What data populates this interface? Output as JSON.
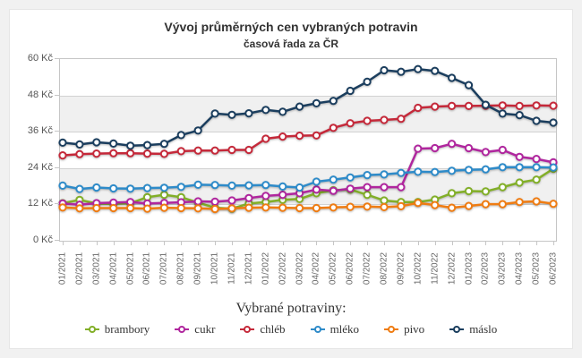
{
  "card": {
    "title": "Vývoj průměrných cen vybraných potravin",
    "subtitle": "časová řada za ČR"
  },
  "chart_data": {
    "type": "line",
    "title": "Vývoj průměrných cen vybraných potravin",
    "subtitle": "časová řada za ČR",
    "legend_title": "Vybrané potraviny:",
    "legend_position": "bottom",
    "grid": true,
    "ylim": [
      0,
      60
    ],
    "y_ticks": [
      0,
      12,
      24,
      36,
      48,
      60
    ],
    "y_tick_suffix": " Kč",
    "shaded_bands": [
      [
        12,
        24
      ],
      [
        36,
        48
      ]
    ],
    "band_color": "#f0f0f0",
    "x_labels": [
      "01/2021",
      "02/2021",
      "03/2021",
      "04/2021",
      "05/2021",
      "06/2021",
      "07/2021",
      "08/2021",
      "09/2021",
      "10/2021",
      "11/2021",
      "12/2021",
      "01/2022",
      "02/2022",
      "03/2022",
      "04/2022",
      "05/2022",
      "06/2022",
      "07/2022",
      "08/2022",
      "09/2022",
      "10/2022",
      "11/2022",
      "12/2022",
      "01/2023",
      "02/2023",
      "03/2023",
      "04/2023",
      "05/2023",
      "06/2023"
    ],
    "series": [
      {
        "name": "brambory",
        "color": "#82af28",
        "values": [
          12.4,
          13.5,
          12.3,
          12.2,
          12.4,
          14.4,
          15.2,
          14.4,
          12.6,
          10.9,
          10.6,
          12.3,
          12.8,
          13.5,
          13.8,
          15.7,
          16.7,
          16.9,
          15.2,
          13.3,
          12.8,
          12.8,
          13.6,
          15.7,
          16.4,
          16.3,
          17.7,
          19.2,
          20.2,
          23.8
        ]
      },
      {
        "name": "cukr",
        "color": "#b0269e",
        "values": [
          12.3,
          11.9,
          12.4,
          12.6,
          12.8,
          12.3,
          12.5,
          12.7,
          13.0,
          12.9,
          13.3,
          14.1,
          14.8,
          15.2,
          15.7,
          16.9,
          16.5,
          17.2,
          17.7,
          17.7,
          17.7,
          30.4,
          30.6,
          32.0,
          30.6,
          29.3,
          30.0,
          27.7,
          27.0,
          25.9
        ]
      },
      {
        "name": "chléb",
        "color": "#c5293a",
        "values": [
          28.2,
          28.6,
          28.8,
          28.9,
          28.9,
          28.8,
          28.7,
          29.6,
          29.8,
          29.8,
          30.0,
          30.0,
          33.7,
          34.4,
          34.7,
          34.8,
          37.3,
          38.8,
          39.6,
          39.9,
          40.3,
          43.9,
          44.3,
          44.5,
          44.5,
          44.6,
          44.7,
          44.5,
          44.7,
          44.6
        ]
      },
      {
        "name": "mléko",
        "color": "#2e8bc9",
        "values": [
          18.2,
          17.1,
          17.6,
          17.3,
          17.2,
          17.4,
          17.5,
          17.8,
          18.5,
          18.4,
          18.2,
          18.3,
          18.4,
          17.9,
          17.6,
          19.5,
          20.2,
          20.9,
          21.7,
          21.9,
          22.4,
          22.8,
          22.7,
          23.1,
          23.4,
          23.6,
          24.3,
          24.3,
          24.3,
          24.2
        ]
      },
      {
        "name": "pivo",
        "color": "#ef7c12",
        "values": [
          11.0,
          10.7,
          10.8,
          10.8,
          10.8,
          10.6,
          10.9,
          10.8,
          10.7,
          10.5,
          10.7,
          10.9,
          11.0,
          10.9,
          10.8,
          10.8,
          11.0,
          11.2,
          11.3,
          11.1,
          11.4,
          12.5,
          11.8,
          10.9,
          11.5,
          12.1,
          12.1,
          12.8,
          13.0,
          12.2
        ]
      },
      {
        "name": "máslo",
        "color": "#1b3e5e",
        "values": [
          32.4,
          31.8,
          32.5,
          32.1,
          31.4,
          31.6,
          32.0,
          34.9,
          36.4,
          42.0,
          41.6,
          42.1,
          43.2,
          42.6,
          44.3,
          45.4,
          46.2,
          49.5,
          52.5,
          56.3,
          55.8,
          56.7,
          56.1,
          53.8,
          51.4,
          44.9,
          42.0,
          41.5,
          39.6,
          39.0
        ]
      }
    ]
  }
}
